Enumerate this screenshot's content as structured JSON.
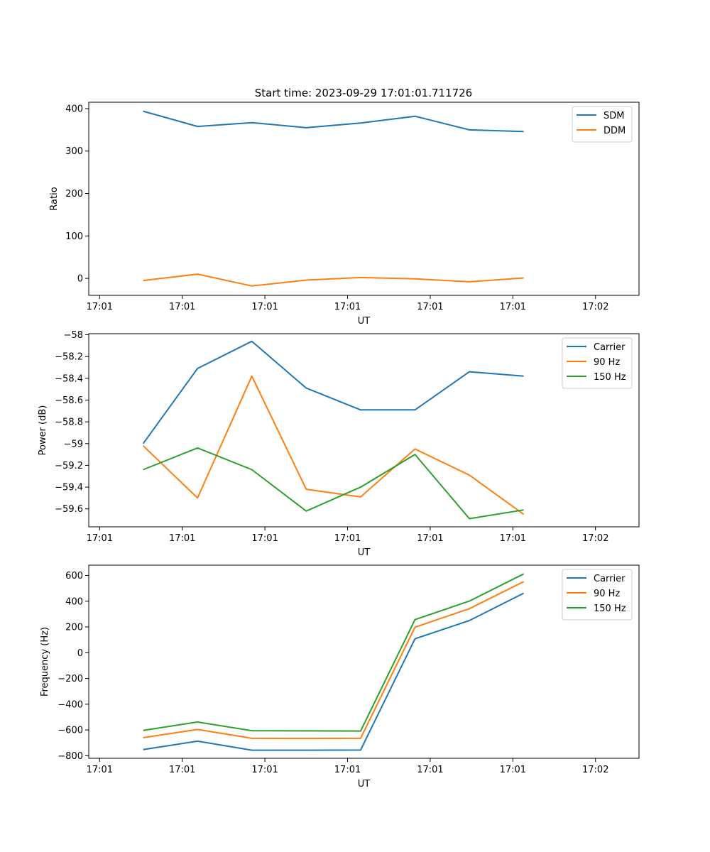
{
  "figure_title": "Start time: 2023-09-29 17:01:01.711726",
  "chart_data": [
    {
      "type": "line",
      "xlabel": "UT",
      "ylabel": "Ratio",
      "x_tick_labels": [
        "17:01",
        "17:01",
        "17:01",
        "17:01",
        "17:01",
        "17:01",
        "17:02"
      ],
      "x": [
        1,
        2,
        3,
        4,
        5,
        6,
        7,
        8
      ],
      "xlim": [
        0,
        9
      ],
      "ylim": [
        -40,
        415
      ],
      "y_ticks": [
        0,
        100,
        200,
        300,
        400
      ],
      "legend_position": "top-right",
      "series": [
        {
          "name": "SDM",
          "color": "#1f77b4",
          "values": [
            394,
            358,
            367,
            355,
            366,
            382,
            350,
            346
          ]
        },
        {
          "name": "DDM",
          "color": "#ff7f0e",
          "values": [
            -5,
            10,
            -18,
            -4,
            2,
            -1,
            -8,
            1
          ]
        }
      ]
    },
    {
      "type": "line",
      "xlabel": "UT",
      "ylabel": "Power (dB)",
      "x_tick_labels": [
        "17:01",
        "17:01",
        "17:01",
        "17:01",
        "17:01",
        "17:01",
        "17:02"
      ],
      "x": [
        1,
        2,
        3,
        4,
        5,
        6,
        7,
        8
      ],
      "xlim": [
        0,
        9
      ],
      "ylim": [
        -59.765,
        -57.99
      ],
      "y_ticks": [
        -59.6,
        -59.4,
        -59.2,
        -59.0,
        -58.8,
        -58.6,
        -58.4,
        -58.2,
        -58.0
      ],
      "legend_position": "top-right",
      "series": [
        {
          "name": "Carrier",
          "color": "#1f77b4",
          "values": [
            -59.0,
            -58.31,
            -58.06,
            -58.49,
            -58.69,
            -58.69,
            -58.34,
            -58.38
          ]
        },
        {
          "name": "90 Hz",
          "color": "#ff7f0e",
          "values": [
            -59.02,
            -59.5,
            -58.38,
            -59.42,
            -59.49,
            -59.05,
            -59.29,
            -59.65
          ]
        },
        {
          "name": "150 Hz",
          "color": "#2ca02c",
          "values": [
            -59.24,
            -59.04,
            -59.24,
            -59.62,
            -59.4,
            -59.1,
            -59.69,
            -59.61
          ]
        }
      ]
    },
    {
      "type": "line",
      "xlabel": "UT",
      "ylabel": "Frequency (Hz)",
      "x_tick_labels": [
        "17:01",
        "17:01",
        "17:01",
        "17:01",
        "17:01",
        "17:01",
        "17:02"
      ],
      "x": [
        1,
        2,
        3,
        4,
        5,
        6,
        7,
        8
      ],
      "xlim": [
        0,
        9
      ],
      "ylim": [
        -820,
        680
      ],
      "y_ticks": [
        -800,
        -600,
        -400,
        -200,
        0,
        200,
        400,
        600
      ],
      "legend_position": "top-right",
      "series": [
        {
          "name": "Carrier",
          "color": "#1f77b4",
          "values": [
            -752,
            -687,
            -757,
            -757,
            -756,
            108,
            250,
            462
          ]
        },
        {
          "name": "90 Hz",
          "color": "#ff7f0e",
          "values": [
            -660,
            -596,
            -665,
            -666,
            -665,
            198,
            342,
            552
          ]
        },
        {
          "name": "150 Hz",
          "color": "#2ca02c",
          "values": [
            -604,
            -538,
            -606,
            -607,
            -608,
            257,
            401,
            612
          ]
        }
      ]
    }
  ]
}
